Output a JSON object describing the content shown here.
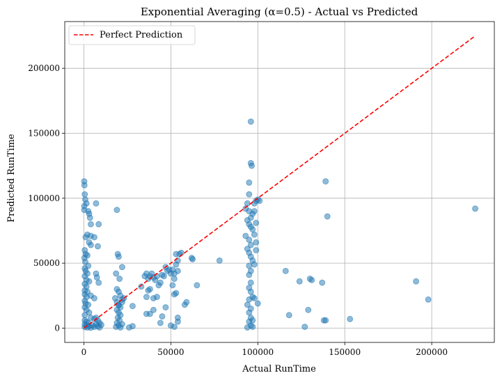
{
  "chart_data": {
    "type": "scatter",
    "title": "Exponential Averaging (α=0.5) - Actual vs Predicted",
    "xlabel": "Actual RunTime",
    "ylabel": "Predicted RunTime",
    "xlim": [
      -11000,
      236000
    ],
    "ylim": [
      -11000,
      236000
    ],
    "xticks": [
      0,
      50000,
      100000,
      150000,
      200000
    ],
    "xtick_labels": [
      "0",
      "50000",
      "100000",
      "150000",
      "200000"
    ],
    "yticks": [
      0,
      50000,
      100000,
      150000,
      200000
    ],
    "ytick_labels": [
      "0",
      "50000",
      "100000",
      "150000",
      "200000"
    ],
    "grid": true,
    "legend_position": "top-left",
    "colors": {
      "points": "#1f77b4",
      "reference": "#ff0000"
    },
    "reference_line": {
      "name": "Perfect Prediction",
      "style": "dashed",
      "x": [
        0,
        225000
      ],
      "y": [
        0,
        225000
      ]
    },
    "series": [
      {
        "points": [
          [
            200,
            113000
          ],
          [
            300,
            110000
          ],
          [
            500,
            103000
          ],
          [
            200,
            94000
          ],
          [
            800,
            99000
          ],
          [
            1500,
            96000
          ],
          [
            200,
            91000
          ],
          [
            2500,
            90000
          ],
          [
            3000,
            88000
          ],
          [
            3500,
            85000
          ],
          [
            4000,
            80000
          ],
          [
            7000,
            96000
          ],
          [
            8500,
            80000
          ],
          [
            2000,
            72000
          ],
          [
            4000,
            71000
          ],
          [
            6000,
            70000
          ],
          [
            3000,
            66000
          ],
          [
            4000,
            64000
          ],
          [
            8000,
            63000
          ],
          [
            500,
            60000
          ],
          [
            1000,
            57000
          ],
          [
            2000,
            56000
          ],
          [
            300,
            54000
          ],
          [
            800,
            51000
          ],
          [
            2500,
            48000
          ],
          [
            500,
            46000
          ],
          [
            1000,
            44000
          ],
          [
            2000,
            42000
          ],
          [
            500,
            40000
          ],
          [
            7000,
            42000
          ],
          [
            7500,
            39000
          ],
          [
            1500,
            37000
          ],
          [
            3000,
            36000
          ],
          [
            500,
            34000
          ],
          [
            8500,
            35000
          ],
          [
            1500,
            32000
          ],
          [
            500,
            29000
          ],
          [
            2000,
            28000
          ],
          [
            500,
            26000
          ],
          [
            1500,
            24000
          ],
          [
            4000,
            25000
          ],
          [
            6000,
            23000
          ],
          [
            500,
            21000
          ],
          [
            1000,
            19000
          ],
          [
            2500,
            18000
          ],
          [
            500,
            16000
          ],
          [
            1500,
            14000
          ],
          [
            3000,
            12000
          ],
          [
            500,
            10000
          ],
          [
            4000,
            8000
          ],
          [
            6000,
            7000
          ],
          [
            500,
            6000
          ],
          [
            1500,
            5000
          ],
          [
            2500,
            4000
          ],
          [
            500,
            3000
          ],
          [
            1500,
            2000
          ],
          [
            3000,
            1500
          ],
          [
            500,
            800
          ],
          [
            2000,
            500
          ],
          [
            4000,
            300
          ],
          [
            6000,
            1000
          ],
          [
            8000,
            1500
          ],
          [
            9000,
            500
          ],
          [
            10000,
            2500
          ],
          [
            7000,
            3000
          ],
          [
            5000,
            2000
          ],
          [
            8000,
            6000
          ],
          [
            7000,
            8000
          ],
          [
            9000,
            4000
          ],
          [
            1000,
            70000
          ],
          [
            19000,
            91000
          ],
          [
            19500,
            57000
          ],
          [
            20000,
            55000
          ],
          [
            22000,
            47000
          ],
          [
            18500,
            42000
          ],
          [
            20500,
            38000
          ],
          [
            19000,
            30000
          ],
          [
            20000,
            28000
          ],
          [
            21000,
            25000
          ],
          [
            22000,
            22000
          ],
          [
            18000,
            23000
          ],
          [
            19000,
            20000
          ],
          [
            20000,
            18000
          ],
          [
            21000,
            16000
          ],
          [
            19000,
            14000
          ],
          [
            20000,
            12000
          ],
          [
            21000,
            10000
          ],
          [
            19500,
            8000
          ],
          [
            20500,
            6000
          ],
          [
            19000,
            4000
          ],
          [
            20000,
            2000
          ],
          [
            21000,
            500
          ],
          [
            22000,
            3000
          ],
          [
            18500,
            1000
          ],
          [
            26000,
            500
          ],
          [
            28000,
            1500
          ],
          [
            28000,
            17000
          ],
          [
            23000,
            23000
          ],
          [
            22000,
            20000
          ],
          [
            20000,
            17500
          ],
          [
            33000,
            32000
          ],
          [
            35000,
            40000
          ],
          [
            36000,
            42000
          ],
          [
            37000,
            38000
          ],
          [
            38000,
            40000
          ],
          [
            39000,
            42000
          ],
          [
            40000,
            39000
          ],
          [
            41000,
            37000
          ],
          [
            42000,
            40000
          ],
          [
            43000,
            33000
          ],
          [
            44000,
            35000
          ],
          [
            45000,
            41000
          ],
          [
            46000,
            40000
          ],
          [
            47000,
            47000
          ],
          [
            48000,
            44000
          ],
          [
            49000,
            45000
          ],
          [
            38000,
            30000
          ],
          [
            37000,
            29000
          ],
          [
            40000,
            23000
          ],
          [
            42000,
            24000
          ],
          [
            45000,
            9000
          ],
          [
            44000,
            4000
          ],
          [
            36000,
            11000
          ],
          [
            38000,
            11000
          ],
          [
            47000,
            16000
          ],
          [
            50000,
            2000
          ],
          [
            52000,
            1000
          ],
          [
            54000,
            5000
          ],
          [
            54000,
            8000
          ],
          [
            52000,
            26000
          ],
          [
            53000,
            27000
          ],
          [
            51000,
            33000
          ],
          [
            52000,
            38000
          ],
          [
            50000,
            42000
          ],
          [
            51000,
            45000
          ],
          [
            53000,
            49000
          ],
          [
            54000,
            52000
          ],
          [
            55000,
            57000
          ],
          [
            56000,
            58000
          ],
          [
            53000,
            57000
          ],
          [
            52000,
            42000
          ],
          [
            54000,
            44000
          ],
          [
            58000,
            18000
          ],
          [
            59000,
            20000
          ],
          [
            62000,
            54000
          ],
          [
            62500,
            53000
          ],
          [
            65000,
            33000
          ],
          [
            78000,
            52000
          ],
          [
            36000,
            24000
          ],
          [
            40000,
            14000
          ],
          [
            96000,
            159000
          ],
          [
            96000,
            127000
          ],
          [
            96500,
            125000
          ],
          [
            95000,
            112000
          ],
          [
            95000,
            103000
          ],
          [
            94000,
            96000
          ],
          [
            93000,
            92000
          ],
          [
            95000,
            90000
          ],
          [
            97000,
            88000
          ],
          [
            96000,
            85000
          ],
          [
            94000,
            83000
          ],
          [
            95000,
            80000
          ],
          [
            96000,
            78000
          ],
          [
            97000,
            76000
          ],
          [
            93000,
            71000
          ],
          [
            95000,
            68000
          ],
          [
            96000,
            64000
          ],
          [
            94000,
            61000
          ],
          [
            95000,
            58000
          ],
          [
            96000,
            55000
          ],
          [
            97000,
            52000
          ],
          [
            95000,
            48000
          ],
          [
            96000,
            44000
          ],
          [
            95000,
            41000
          ],
          [
            96000,
            35000
          ],
          [
            95000,
            31000
          ],
          [
            96000,
            28000
          ],
          [
            97000,
            24000
          ],
          [
            95000,
            22000
          ],
          [
            94000,
            18000
          ],
          [
            96000,
            15000
          ],
          [
            95000,
            12000
          ],
          [
            96000,
            8000
          ],
          [
            95000,
            5000
          ],
          [
            96000,
            2000
          ],
          [
            97000,
            1000
          ],
          [
            94000,
            500
          ],
          [
            98000,
            96000
          ],
          [
            99000,
            98000
          ],
          [
            100000,
            99000
          ],
          [
            101000,
            98000
          ],
          [
            98000,
            90000
          ],
          [
            99000,
            81000
          ],
          [
            98000,
            72000
          ],
          [
            99000,
            66000
          ],
          [
            99000,
            60000
          ],
          [
            98000,
            49000
          ],
          [
            100000,
            19000
          ],
          [
            98000,
            23000
          ],
          [
            97000,
            6000
          ],
          [
            116000,
            44000
          ],
          [
            118000,
            10000
          ],
          [
            124000,
            36000
          ],
          [
            127000,
            1000
          ],
          [
            129000,
            14000
          ],
          [
            130000,
            38000
          ],
          [
            131000,
            37000
          ],
          [
            137000,
            35000
          ],
          [
            138000,
            6000
          ],
          [
            139000,
            6000
          ],
          [
            139000,
            113000
          ],
          [
            140000,
            86000
          ],
          [
            153000,
            7000
          ],
          [
            191000,
            36000
          ],
          [
            198000,
            22000
          ],
          [
            225000,
            92000
          ]
        ]
      }
    ]
  }
}
